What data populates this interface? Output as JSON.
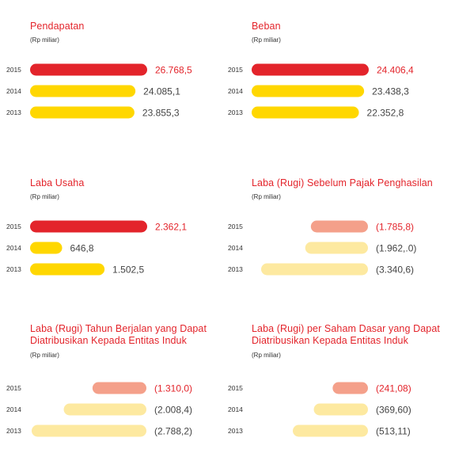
{
  "chart_data": [
    {
      "type": "bar",
      "title": "Pendapatan",
      "unit": "(Rp miliar)",
      "categories": [
        "2015",
        "2014",
        "2013"
      ],
      "values": [
        26768.5,
        24085.1,
        23855.3
      ],
      "value_labels": [
        "26.768,5",
        "24.085,1",
        "23.855,3"
      ],
      "highlight_color": "#e3242b",
      "base_color": "#ffd700"
    },
    {
      "type": "bar",
      "title": "Beban",
      "unit": "(Rp miliar)",
      "categories": [
        "2015",
        "2014",
        "2013"
      ],
      "values": [
        24406.4,
        23438.3,
        22352.8
      ],
      "value_labels": [
        "24.406,4",
        "23.438,3",
        "22.352,8"
      ],
      "highlight_color": "#e3242b",
      "base_color": "#ffd700"
    },
    {
      "type": "bar",
      "title": "Laba Usaha",
      "unit": "(Rp miliar)",
      "categories": [
        "2015",
        "2014",
        "2013"
      ],
      "values": [
        2362.1,
        646.8,
        1502.5
      ],
      "value_labels": [
        "2.362,1",
        "646,8",
        "1.502,5"
      ],
      "highlight_color": "#e3242b",
      "base_color": "#ffd700"
    },
    {
      "type": "bar",
      "title": "Laba (Rugi) Sebelum Pajak Penghasilan",
      "unit": "(Rp miliar)",
      "categories": [
        "2015",
        "2014",
        "2013"
      ],
      "values": [
        -1785.8,
        -1962.0,
        -3340.6
      ],
      "value_labels": [
        "(1.785,8)",
        "(1.962,.0)",
        "(3.340,6)"
      ],
      "highlight_color": "#f4a08a",
      "base_color": "#fde9a0"
    },
    {
      "type": "bar",
      "title": "Laba (Rugi) Tahun Berjalan yang Dapat\nDiatribusikan Kepada Entitas Induk",
      "unit": "(Rp miliar)",
      "categories": [
        "2015",
        "2014",
        "2013"
      ],
      "values": [
        -1310.0,
        -2008.4,
        -2788.2
      ],
      "value_labels": [
        "(1.310,0)",
        "(2.008,4)",
        "(2.788,2)"
      ],
      "highlight_color": "#f4a08a",
      "base_color": "#fde9a0"
    },
    {
      "type": "bar",
      "title": "Laba (Rugi) per Saham Dasar yang Dapat\nDiatribusikan Kepada Entitas Induk",
      "unit": "(Rp miliar)",
      "categories": [
        "2015",
        "2014",
        "2013"
      ],
      "values": [
        -241.08,
        -369.6,
        -513.11
      ],
      "value_labels": [
        "(241,08)",
        "(369,60)",
        "(513,11)"
      ],
      "highlight_color": "#f4a08a",
      "base_color": "#fde9a0"
    }
  ]
}
